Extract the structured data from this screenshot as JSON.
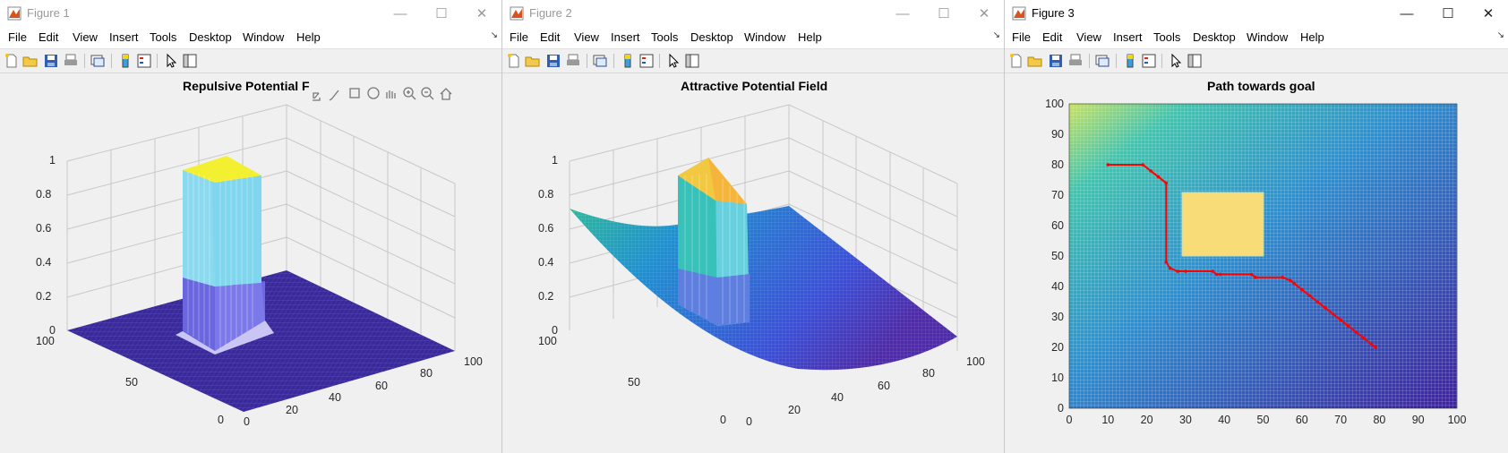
{
  "menu_items": [
    "File",
    "Edit",
    "View",
    "Insert",
    "Tools",
    "Desktop",
    "Window",
    "Help"
  ],
  "figures": [
    {
      "window_title": "Figure 1",
      "active": false,
      "axes_title": "Repulsive Potential F",
      "z_ticks": [
        "0",
        "0.2",
        "0.4",
        "0.6",
        "0.8",
        "1"
      ],
      "y_ticks": [
        "0",
        "50",
        "100"
      ],
      "x_ticks": [
        "0",
        "20",
        "40",
        "60",
        "80",
        "100"
      ],
      "axes_toolbar_icons": [
        "export-icon",
        "brush-icon",
        "datatip-icon",
        "rotate-icon",
        "pan-icon",
        "zoom-in-icon",
        "zoom-out-icon",
        "home-icon"
      ]
    },
    {
      "window_title": "Figure 2",
      "active": false,
      "axes_title": "Attractive Potential Field",
      "z_ticks": [
        "0",
        "0.2",
        "0.4",
        "0.6",
        "0.8",
        "1"
      ],
      "y_ticks": [
        "0",
        "50",
        "100"
      ],
      "x_ticks": [
        "0",
        "20",
        "40",
        "60",
        "80",
        "100"
      ]
    },
    {
      "window_title": "Figure 3",
      "active": true,
      "axes_title": "Path towards goal",
      "y_ticks": [
        "0",
        "10",
        "20",
        "30",
        "40",
        "50",
        "60",
        "70",
        "80",
        "90",
        "100"
      ],
      "x_ticks": [
        "0",
        "10",
        "20",
        "30",
        "40",
        "50",
        "60",
        "70",
        "80",
        "90",
        "100"
      ]
    }
  ],
  "window_controls": {
    "minimize": "—",
    "maximize": "☐",
    "close": "✕"
  },
  "colors": {
    "surface_low": "#3e2a9c",
    "surface_mid": "#21a4c8",
    "surface_high": "#f5f52a",
    "path": "#ff0000",
    "obstacle": "#f8dc78"
  },
  "chart_data": [
    {
      "type": "surface",
      "title": "Repulsive Potential F",
      "xlim": [
        0,
        100
      ],
      "ylim": [
        0,
        100
      ],
      "zlim": [
        0,
        1
      ],
      "description_values": {
        "obstacle_x": [
          30,
          50
        ],
        "obstacle_y": [
          50,
          70
        ],
        "peak_z": 1,
        "base_z": 0
      }
    },
    {
      "type": "surface",
      "title": "Attractive Potential Field",
      "xlim": [
        0,
        100
      ],
      "ylim": [
        0,
        100
      ],
      "zlim": [
        0,
        1
      ],
      "description_values": {
        "obstacle_x": [
          30,
          50
        ],
        "obstacle_y": [
          50,
          70
        ],
        "max_corner_z": 0.7,
        "goal_z": 0
      }
    },
    {
      "type": "line",
      "title": "Path towards goal",
      "xlim": [
        0,
        100
      ],
      "ylim": [
        0,
        100
      ],
      "obstacle": {
        "x": [
          30,
          51
        ],
        "y": [
          50,
          71
        ]
      },
      "series": [
        {
          "x": [
            10,
            19,
            21,
            23,
            25,
            25,
            26,
            28,
            30,
            37,
            38,
            39,
            47,
            48,
            55,
            57,
            58,
            60,
            62,
            64,
            66,
            68,
            70,
            72,
            74,
            76,
            78,
            79
          ],
          "y": [
            80,
            80,
            78,
            76,
            74,
            48,
            46,
            45,
            45,
            45,
            44,
            44,
            44,
            43,
            43,
            42,
            41,
            39,
            37,
            35,
            33,
            31,
            29,
            27,
            25,
            23,
            21,
            20
          ]
        }
      ]
    }
  ]
}
